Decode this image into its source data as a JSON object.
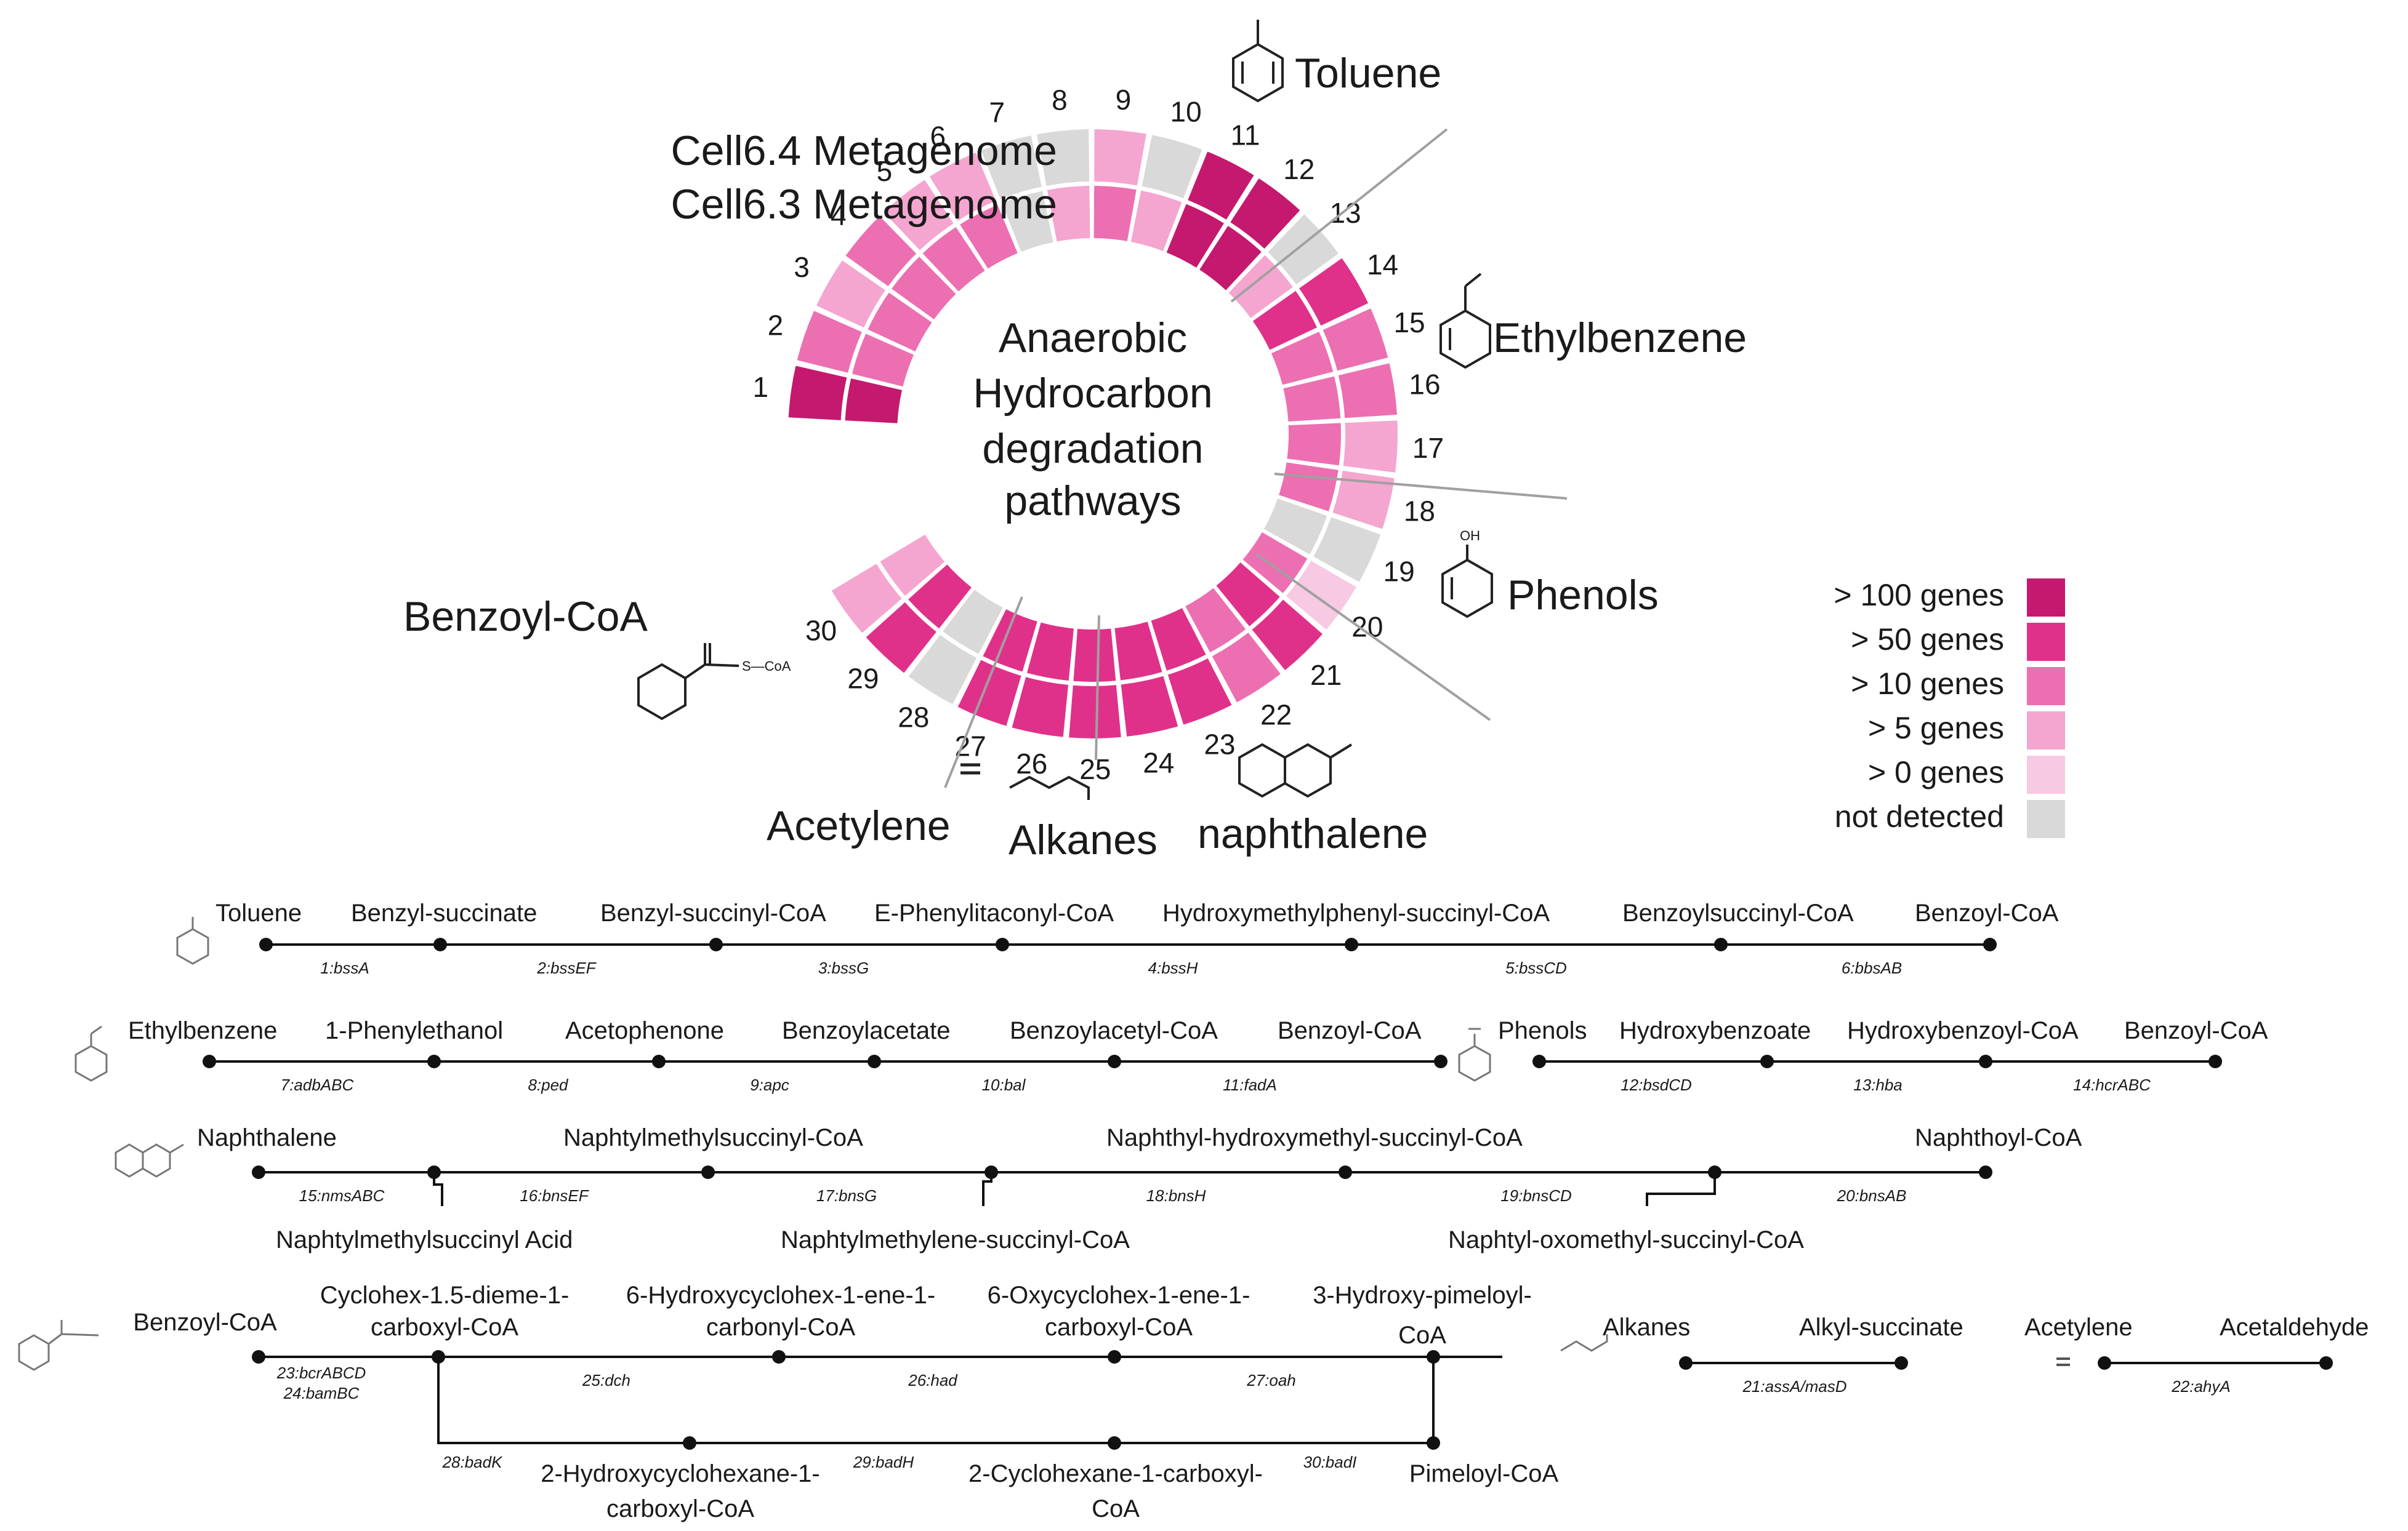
{
  "colors": {
    "gt100": "#c4196e",
    "gt50": "#e0318a",
    "gt10": "#ec6fb2",
    "gt5": "#f4a6d0",
    "gt0": "#f8c9e2",
    "nd": "#d9d9d9"
  },
  "wheel": {
    "title_lines": [
      "Anaerobic",
      "Hydrocarbon",
      "degradation",
      "pathways"
    ],
    "ring_labels": {
      "outer": "Cell6.4 Metagenome",
      "inner": "Cell6.3 Metagenome"
    },
    "groups": {
      "toluene": "Toluene",
      "ethylbenzene": "Ethylbenzene",
      "phenols": "Phenols",
      "naphthalene": "naphthalene",
      "alkanes": "Alkanes",
      "acetylene": "Acetylene",
      "benzoyl": "Benzoyl-CoA",
      "benzoyl_struct": "S—CoA",
      "phenol_struct": "OH"
    },
    "segments": [
      {
        "n": "1",
        "outer": "gt100",
        "inner": "gt100"
      },
      {
        "n": "2",
        "outer": "gt10",
        "inner": "gt10"
      },
      {
        "n": "3",
        "outer": "gt5",
        "inner": "gt10"
      },
      {
        "n": "4",
        "outer": "gt10",
        "inner": "gt10"
      },
      {
        "n": "5",
        "outer": "gt5",
        "inner": "gt10"
      },
      {
        "n": "6",
        "outer": "gt5",
        "inner": "gt10"
      },
      {
        "n": "7",
        "outer": "nd",
        "inner": "nd"
      },
      {
        "n": "8",
        "outer": "nd",
        "inner": "gt5"
      },
      {
        "n": "9",
        "outer": "gt5",
        "inner": "gt10"
      },
      {
        "n": "10",
        "outer": "nd",
        "inner": "gt5"
      },
      {
        "n": "11",
        "outer": "gt100",
        "inner": "gt100"
      },
      {
        "n": "12",
        "outer": "gt100",
        "inner": "gt100"
      },
      {
        "n": "13",
        "outer": "nd",
        "inner": "gt5"
      },
      {
        "n": "14",
        "outer": "gt50",
        "inner": "gt50"
      },
      {
        "n": "15",
        "outer": "gt10",
        "inner": "gt10"
      },
      {
        "n": "16",
        "outer": "gt10",
        "inner": "gt10"
      },
      {
        "n": "17",
        "outer": "gt5",
        "inner": "gt10"
      },
      {
        "n": "18",
        "outer": "gt5",
        "inner": "gt10"
      },
      {
        "n": "19",
        "outer": "nd",
        "inner": "nd"
      },
      {
        "n": "20",
        "outer": "gt0",
        "inner": "gt10"
      },
      {
        "n": "21",
        "outer": "gt50",
        "inner": "gt50"
      },
      {
        "n": "22",
        "outer": "gt10",
        "inner": "gt10"
      },
      {
        "n": "23",
        "outer": "gt50",
        "inner": "gt50"
      },
      {
        "n": "24",
        "outer": "gt50",
        "inner": "gt50"
      },
      {
        "n": "25",
        "outer": "gt50",
        "inner": "gt50"
      },
      {
        "n": "26",
        "outer": "gt50",
        "inner": "gt50"
      },
      {
        "n": "27",
        "outer": "gt50",
        "inner": "gt50"
      },
      {
        "n": "28",
        "outer": "nd",
        "inner": "nd"
      },
      {
        "n": "29",
        "outer": "gt50",
        "inner": "gt50"
      },
      {
        "n": "30",
        "outer": "gt5",
        "inner": "gt5"
      }
    ]
  },
  "legend": {
    "items": [
      {
        "label": "> 100 genes",
        "key": "gt100"
      },
      {
        "label": "> 50 genes",
        "key": "gt50"
      },
      {
        "label": "> 10 genes",
        "key": "gt10"
      },
      {
        "label": "> 5 genes",
        "key": "gt5"
      },
      {
        "label": "> 0 genes",
        "key": "gt0"
      },
      {
        "label": "not detected",
        "key": "nd"
      }
    ]
  },
  "pathways": {
    "toluene": {
      "compounds": [
        "Toluene",
        "Benzyl-succinate",
        "Benzyl-succinyl-CoA",
        "E-Phenylitaconyl-CoA",
        "Hydroxymethylphenyl-succinyl-CoA",
        "Benzoylsuccinyl-CoA",
        "Benzoyl-CoA"
      ],
      "enzymes": [
        "1:bssA",
        "2:bssEF",
        "3:bssG",
        "4:bssH",
        "5:bssCD",
        "6:bbsAB"
      ]
    },
    "ethylbenzene": {
      "compounds": [
        "Ethylbenzene",
        "1-Phenylethanol",
        "Acetophenone",
        "Benzoylacetate",
        "Benzoylacetyl-CoA",
        "Benzoyl-CoA"
      ],
      "enzymes": [
        "7:adbABC",
        "8:ped",
        "9:apc",
        "10:bal",
        "11:fadA"
      ]
    },
    "phenols": {
      "compounds": [
        "Phenols",
        "Hydroxybenzoate",
        "Hydroxybenzoyl-CoA",
        "Benzoyl-CoA"
      ],
      "enzymes": [
        "12:bsdCD",
        "13:hba",
        "14:hcrABC"
      ]
    },
    "naphthalene": {
      "top": [
        "Naphthalene",
        "Naphtylmethylsuccinyl-CoA",
        "Naphthyl-hydroxymethyl-succinyl-CoA",
        "Naphthoyl-CoA"
      ],
      "bottom": [
        "Naphtylmethylsuccinyl Acid",
        "Naphtylmethylene-succinyl-CoA",
        "Naphtyl-oxomethyl-succinyl-CoA"
      ],
      "enzymes": [
        "15:nmsABC",
        "16:bnsEF",
        "17:bnsG",
        "18:bnsH",
        "19:bnsCD",
        "20:bnsAB"
      ]
    },
    "benzoyl": {
      "top": [
        "Benzoyl-CoA",
        "Cyclohex-1.5-dieme-1-",
        "carboxyl-CoA",
        "6-Hydroxycyclohex-1-ene-1-",
        "carbonyl-CoA",
        "6-Oxycyclohex-1-ene-1-",
        "carboxyl-CoA",
        "3-Hydroxy-pimeloyl-",
        "CoA"
      ],
      "bottom": [
        "2-Hydroxycyclohexane-1-",
        "carboxyl-CoA",
        "2-Cyclohexane-1-carboxyl-",
        "CoA",
        "Pimeloyl-CoA"
      ],
      "enzymes": [
        "23:bcrABCD",
        "24:bamBC",
        "25:dch",
        "26:had",
        "27:oah",
        "28:badK",
        "29:badH",
        "30:badI"
      ]
    },
    "alkanes": {
      "compounds": [
        "Alkanes",
        "Alkyl-succinate"
      ],
      "enzymes": [
        "21:assA/masD"
      ]
    },
    "acetylene": {
      "compounds": [
        "Acetylene",
        "Acetaldehyde"
      ],
      "enzymes": [
        "22:ahyA"
      ]
    }
  }
}
